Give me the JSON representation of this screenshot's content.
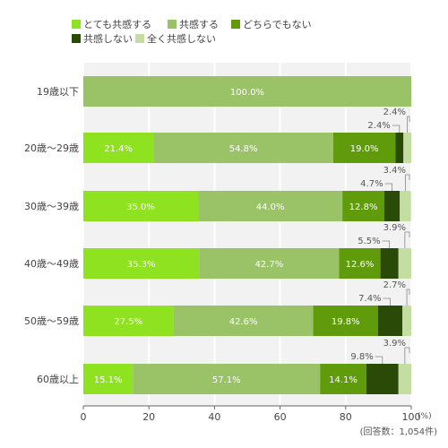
{
  "chart_data": {
    "type": "bar",
    "orientation": "horizontal",
    "stacked": true,
    "categories": [
      "19歳以下",
      "20歳～29歳",
      "30歳～39歳",
      "40歳～49歳",
      "50歳～59歳",
      "60歳以上"
    ],
    "series": [
      {
        "name": "とても共感する",
        "color": "#8ee21f",
        "values": [
          0,
          21.4,
          35.0,
          35.3,
          27.5,
          15.1
        ]
      },
      {
        "name": "共感する",
        "color": "#9ac266",
        "values": [
          100.0,
          54.8,
          44.0,
          42.7,
          42.6,
          57.1
        ]
      },
      {
        "name": "どちらでもない",
        "color": "#5f9b0b",
        "values": [
          0,
          19.0,
          12.8,
          12.6,
          19.8,
          14.1
        ]
      },
      {
        "name": "共感しない",
        "color": "#2a4a07",
        "values": [
          0,
          2.4,
          4.7,
          5.5,
          7.4,
          9.8
        ]
      },
      {
        "name": "全く共感しない",
        "color": "#c4dea2",
        "values": [
          0,
          2.4,
          3.4,
          3.9,
          2.7,
          3.9
        ]
      }
    ],
    "labels": [
      [
        "",
        "100.0%",
        "",
        "",
        ""
      ],
      [
        "21.4%",
        "54.8%",
        "19.0%",
        "2.4%",
        "2.4%"
      ],
      [
        "35.0%",
        "44.0%",
        "12.8%",
        "4.7%",
        "3.4%"
      ],
      [
        "35.3%",
        "42.7%",
        "12.6%",
        "5.5%",
        "3.9%"
      ],
      [
        "27.5%",
        "42.6%",
        "19.8%",
        "7.4%",
        "2.7%"
      ],
      [
        "15.1%",
        "57.1%",
        "14.1%",
        "9.8%",
        "3.9%"
      ]
    ],
    "xlim": [
      0,
      100
    ],
    "xticks": [
      0,
      20,
      40,
      60,
      80,
      100
    ],
    "x_unit": "(%)",
    "grid": true,
    "legend_position": "top-left",
    "note": "(回答数：1,054件)"
  }
}
